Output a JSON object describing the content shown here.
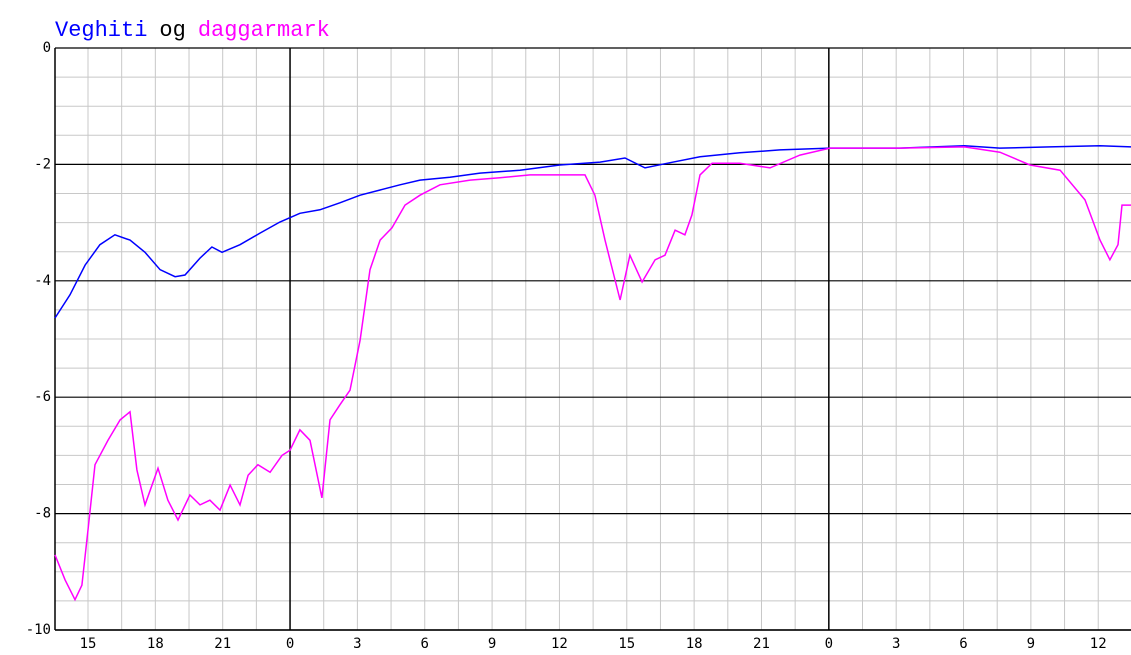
{
  "chart_data": {
    "type": "line",
    "legend_joiner": "og",
    "series": [
      {
        "name": "Veghiti",
        "color": "#0000ff",
        "x": [
          13.53,
          14.2,
          14.87,
          15.53,
          16.2,
          16.87,
          17.54,
          18.21,
          18.88,
          19.32,
          19.99,
          20.52,
          20.97,
          21.77,
          22.66,
          23.55,
          24.44,
          25.33,
          26.22,
          27.12,
          28.01,
          28.9,
          29.79,
          31.12,
          32.46,
          34.24,
          36.02,
          37.81,
          38.92,
          39.81,
          40.93,
          42.26,
          44.04,
          45.82,
          48.05,
          51.17,
          54.04,
          55.62,
          57.85,
          60.08,
          61.46
        ],
        "values": [
          -4.64,
          -4.24,
          -3.73,
          -3.38,
          -3.21,
          -3.3,
          -3.51,
          -3.81,
          -3.93,
          -3.9,
          -3.61,
          -3.42,
          -3.51,
          -3.38,
          -3.18,
          -2.99,
          -2.84,
          -2.78,
          -2.66,
          -2.53,
          -2.44,
          -2.35,
          -2.27,
          -2.22,
          -2.15,
          -2.1,
          -2.01,
          -1.96,
          -1.89,
          -2.06,
          -1.97,
          -1.87,
          -1.8,
          -1.75,
          -1.72,
          -1.72,
          -1.68,
          -1.72,
          -1.7,
          -1.68,
          -1.7
        ]
      },
      {
        "name": "daggarmark",
        "color": "#ff00ff",
        "x": [
          13.53,
          13.98,
          14.42,
          14.73,
          15.0,
          15.31,
          15.89,
          16.43,
          16.87,
          17.18,
          17.54,
          18.12,
          18.56,
          19.01,
          19.54,
          19.99,
          20.43,
          20.88,
          21.33,
          21.77,
          22.13,
          22.57,
          23.11,
          23.64,
          24.0,
          24.44,
          24.89,
          25.42,
          25.78,
          26.22,
          26.67,
          27.12,
          27.56,
          28.01,
          28.54,
          29.12,
          29.79,
          30.68,
          32.02,
          33.35,
          34.69,
          36.02,
          37.14,
          37.58,
          38.03,
          38.7,
          39.14,
          39.68,
          40.26,
          40.7,
          41.15,
          41.59,
          41.9,
          42.26,
          42.8,
          44.04,
          45.38,
          46.71,
          48.05,
          51.17,
          54.04,
          55.62,
          56.96,
          58.3,
          59.41,
          60.08,
          60.52,
          60.88,
          61.06,
          61.46
        ],
        "values": [
          -8.71,
          -9.14,
          -9.48,
          -9.23,
          -8.28,
          -7.16,
          -6.74,
          -6.39,
          -6.25,
          -7.25,
          -7.85,
          -7.22,
          -7.77,
          -8.11,
          -7.68,
          -7.85,
          -7.77,
          -7.94,
          -7.51,
          -7.85,
          -7.34,
          -7.16,
          -7.29,
          -7.0,
          -6.91,
          -6.56,
          -6.74,
          -7.73,
          -6.39,
          -6.13,
          -5.88,
          -5.02,
          -3.81,
          -3.3,
          -3.09,
          -2.7,
          -2.53,
          -2.35,
          -2.27,
          -2.23,
          -2.18,
          -2.18,
          -2.18,
          -2.53,
          -3.3,
          -4.33,
          -3.56,
          -4.02,
          -3.64,
          -3.56,
          -3.13,
          -3.21,
          -2.87,
          -2.18,
          -1.98,
          -1.98,
          -2.06,
          -1.84,
          -1.72,
          -1.72,
          -1.7,
          -1.79,
          -2.01,
          -2.1,
          -2.61,
          -3.3,
          -3.64,
          -3.38,
          -2.7,
          -2.7
        ]
      }
    ],
    "xlim": [
      13.53,
      61.46
    ],
    "xticks": [
      15,
      18,
      21,
      {
        "value": 24,
        "label": "0"
      },
      {
        "value": 27,
        "label": "3"
      },
      {
        "value": 30,
        "label": "6"
      },
      {
        "value": 33,
        "label": "9"
      },
      {
        "value": 36,
        "label": "12"
      },
      {
        "value": 39,
        "label": "15"
      },
      {
        "value": 42,
        "label": "18"
      },
      {
        "value": 45,
        "label": "21"
      },
      {
        "value": 48,
        "label": "0"
      },
      {
        "value": 51,
        "label": "3"
      },
      {
        "value": 54,
        "label": "6"
      },
      {
        "value": 57,
        "label": "9"
      },
      {
        "value": 60,
        "label": "12"
      }
    ],
    "ylim": [
      -10,
      0
    ],
    "yticks": [
      0,
      -2,
      -4,
      -6,
      -8,
      -10
    ],
    "grid": true
  }
}
